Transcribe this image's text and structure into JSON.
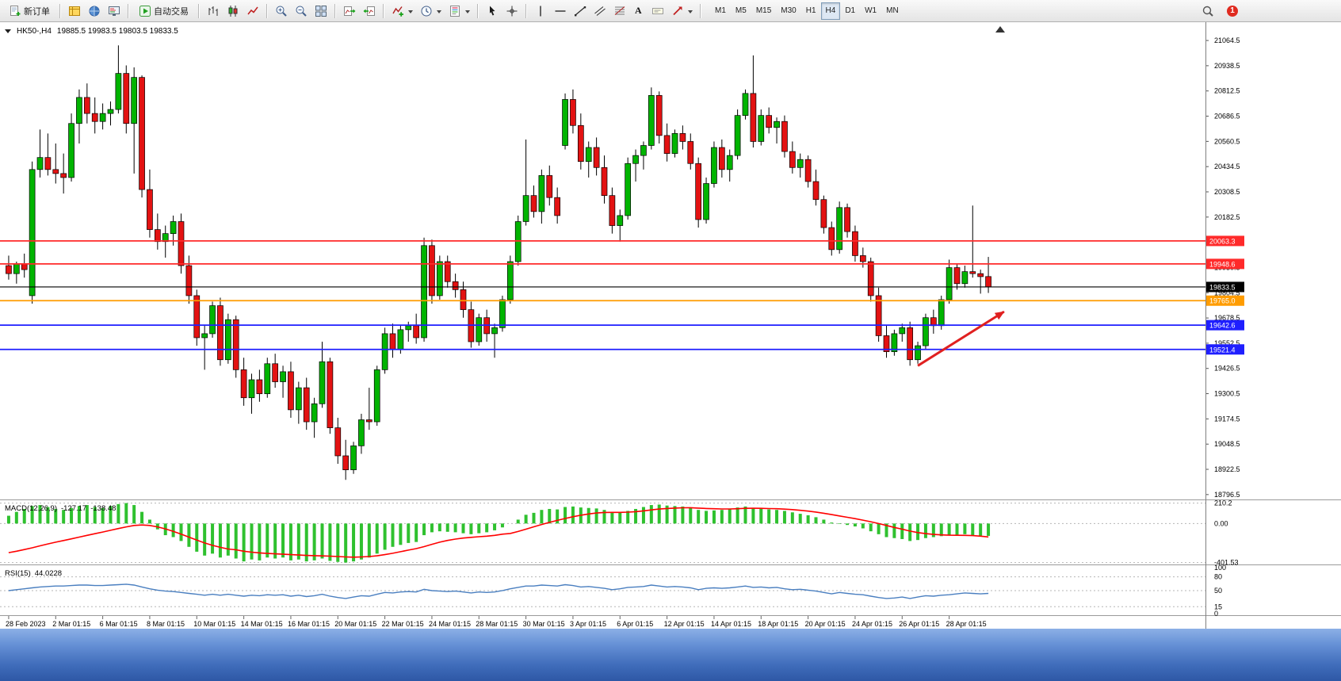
{
  "toolbar": {
    "new_order_label": "新订单",
    "auto_trading_label": "自动交易",
    "text_tool_label": "A",
    "timeframes": [
      "M1",
      "M5",
      "M15",
      "M30",
      "H1",
      "H4",
      "D1",
      "W1",
      "MN"
    ],
    "active_timeframe": "H4",
    "notification_badge": "1"
  },
  "chart": {
    "symbol_label": "HK50-,H4",
    "ohlc_text": "19885.5 19983.5 19803.5 19833.5"
  },
  "chart_data": {
    "type": "candlestick",
    "symbol": "HK50-",
    "timeframe": "H4",
    "ohlc_display": {
      "open": 19885.5,
      "high": 19983.5,
      "low": 19803.5,
      "close": 19833.5
    },
    "colors": {
      "up": "#00b400",
      "down": "#e31212",
      "wick": "#000000",
      "macd_bar": "#2fc12f",
      "macd_signal": "#ff0000",
      "rsi": "#4a7fc0"
    },
    "y_axis": {
      "min": 18780,
      "max": 21140,
      "ticks": [
        21064.5,
        20938.5,
        20812.5,
        20686.5,
        20560.5,
        20434.5,
        20308.5,
        20182.5,
        20056.5,
        19930.5,
        19804.5,
        19678.5,
        19552.5,
        19426.5,
        19300.5,
        19174.5,
        19048.5,
        18922.5,
        18796.5
      ]
    },
    "h_lines": [
      {
        "price": 20063.3,
        "color": "#ff2a2a",
        "label": "20063.3"
      },
      {
        "price": 19948.6,
        "color": "#ff2a2a",
        "label": "19948.6"
      },
      {
        "price": 19765.0,
        "color": "#ff9c00",
        "label": "19765.0"
      },
      {
        "price": 19642.6,
        "color": "#1f1fff",
        "label": "19642.6"
      },
      {
        "price": 19521.4,
        "color": "#1f1fff",
        "label": "19521.4"
      }
    ],
    "bid_line": {
      "price": 19833.5,
      "color": "#000000",
      "label": "19833.5"
    },
    "annotations": {
      "arrow": {
        "type": "arrow",
        "color": "#e02020",
        "from": {
          "index": 116,
          "price": 19440
        },
        "to": {
          "index": 127,
          "price": 19710
        }
      }
    },
    "x_labels": [
      {
        "i": 0,
        "t": "28 Feb 2023"
      },
      {
        "i": 6,
        "t": "2 Mar 01:15"
      },
      {
        "i": 12,
        "t": "6 Mar 01:15"
      },
      {
        "i": 18,
        "t": "8 Mar 01:15"
      },
      {
        "i": 24,
        "t": "10 Mar 01:15"
      },
      {
        "i": 30,
        "t": "14 Mar 01:15"
      },
      {
        "i": 36,
        "t": "16 Mar 01:15"
      },
      {
        "i": 42,
        "t": "20 Mar 01:15"
      },
      {
        "i": 48,
        "t": "22 Mar 01:15"
      },
      {
        "i": 54,
        "t": "24 Mar 01:15"
      },
      {
        "i": 60,
        "t": "28 Mar 01:15"
      },
      {
        "i": 66,
        "t": "30 Mar 01:15"
      },
      {
        "i": 72,
        "t": "3 Apr 01:15"
      },
      {
        "i": 78,
        "t": "6 Apr 01:15"
      },
      {
        "i": 84,
        "t": "12 Apr 01:15"
      },
      {
        "i": 90,
        "t": "14 Apr 01:15"
      },
      {
        "i": 96,
        "t": "18 Apr 01:15"
      },
      {
        "i": 102,
        "t": "20 Apr 01:15"
      },
      {
        "i": 108,
        "t": "24 Apr 01:15"
      },
      {
        "i": 114,
        "t": "26 Apr 01:15"
      },
      {
        "i": 120,
        "t": "28 Apr 01:15"
      }
    ],
    "candles": [
      [
        19940,
        19990,
        19870,
        19900
      ],
      [
        19900,
        19960,
        19850,
        19950
      ],
      [
        19950,
        20000,
        19880,
        19920
      ],
      [
        19790,
        20460,
        19750,
        20420
      ],
      [
        20420,
        20620,
        20380,
        20480
      ],
      [
        20480,
        20600,
        20390,
        20420
      ],
      [
        20420,
        20550,
        20350,
        20400
      ],
      [
        20400,
        20500,
        20300,
        20380
      ],
      [
        20380,
        20700,
        20360,
        20650
      ],
      [
        20650,
        20820,
        20550,
        20780
      ],
      [
        20780,
        20850,
        20650,
        20700
      ],
      [
        20700,
        20780,
        20600,
        20660
      ],
      [
        20660,
        20750,
        20620,
        20700
      ],
      [
        20700,
        20760,
        20640,
        20720
      ],
      [
        20720,
        21040,
        20700,
        20900
      ],
      [
        20900,
        20940,
        20600,
        20650
      ],
      [
        20650,
        20930,
        20400,
        20880
      ],
      [
        20880,
        20890,
        20280,
        20320
      ],
      [
        20320,
        20420,
        20080,
        20120
      ],
      [
        20120,
        20200,
        20020,
        20060
      ],
      [
        20060,
        20140,
        19980,
        20100
      ],
      [
        20100,
        20190,
        20040,
        20160
      ],
      [
        20160,
        20200,
        19900,
        19940
      ],
      [
        19940,
        19990,
        19750,
        19790
      ],
      [
        19790,
        19820,
        19540,
        19580
      ],
      [
        19580,
        19640,
        19420,
        19600
      ],
      [
        19600,
        19760,
        19580,
        19740
      ],
      [
        19740,
        19780,
        19440,
        19470
      ],
      [
        19470,
        19700,
        19450,
        19670
      ],
      [
        19670,
        19690,
        19380,
        19420
      ],
      [
        19420,
        19480,
        19240,
        19280
      ],
      [
        19280,
        19400,
        19200,
        19370
      ],
      [
        19370,
        19420,
        19260,
        19300
      ],
      [
        19300,
        19480,
        19280,
        19450
      ],
      [
        19450,
        19500,
        19330,
        19360
      ],
      [
        19360,
        19440,
        19280,
        19410
      ],
      [
        19410,
        19460,
        19180,
        19220
      ],
      [
        19220,
        19360,
        19150,
        19330
      ],
      [
        19330,
        19380,
        19120,
        19160
      ],
      [
        19160,
        19280,
        19080,
        19250
      ],
      [
        19250,
        19560,
        19230,
        19460
      ],
      [
        19460,
        19480,
        19100,
        19130
      ],
      [
        19130,
        19180,
        18950,
        18990
      ],
      [
        18990,
        19070,
        18870,
        18920
      ],
      [
        18920,
        19060,
        18900,
        19040
      ],
      [
        19040,
        19200,
        19000,
        19170
      ],
      [
        19170,
        19330,
        19120,
        19160
      ],
      [
        19160,
        19440,
        19140,
        19420
      ],
      [
        19420,
        19630,
        19400,
        19600
      ],
      [
        19600,
        19650,
        19480,
        19520
      ],
      [
        19520,
        19640,
        19500,
        19620
      ],
      [
        19620,
        19660,
        19560,
        19640
      ],
      [
        19640,
        19700,
        19550,
        19580
      ],
      [
        19580,
        20080,
        19560,
        20040
      ],
      [
        20040,
        20070,
        19750,
        19790
      ],
      [
        19790,
        19990,
        19770,
        19960
      ],
      [
        19960,
        19990,
        19830,
        19860
      ],
      [
        19860,
        19900,
        19780,
        19820
      ],
      [
        19820,
        19860,
        19680,
        19720
      ],
      [
        19720,
        19760,
        19530,
        19560
      ],
      [
        19560,
        19700,
        19540,
        19680
      ],
      [
        19680,
        19720,
        19560,
        19600
      ],
      [
        19600,
        19650,
        19480,
        19630
      ],
      [
        19630,
        19790,
        19610,
        19770
      ],
      [
        19770,
        19990,
        19750,
        19960
      ],
      [
        19960,
        20190,
        19940,
        20160
      ],
      [
        20160,
        20570,
        20140,
        20290
      ],
      [
        20290,
        20340,
        20180,
        20210
      ],
      [
        20210,
        20420,
        20150,
        20390
      ],
      [
        20390,
        20440,
        20240,
        20280
      ],
      [
        20280,
        20330,
        20150,
        20190
      ],
      [
        20540,
        20800,
        20520,
        20770
      ],
      [
        20770,
        20820,
        20600,
        20640
      ],
      [
        20640,
        20700,
        20420,
        20460
      ],
      [
        20460,
        20560,
        20380,
        20530
      ],
      [
        20530,
        20580,
        20390,
        20430
      ],
      [
        20430,
        20490,
        20250,
        20290
      ],
      [
        20290,
        20330,
        20100,
        20140
      ],
      [
        20140,
        20220,
        20060,
        20190
      ],
      [
        20190,
        20480,
        20170,
        20450
      ],
      [
        20450,
        20520,
        20360,
        20490
      ],
      [
        20490,
        20560,
        20420,
        20540
      ],
      [
        20540,
        20830,
        20520,
        20790
      ],
      [
        20790,
        20810,
        20550,
        20590
      ],
      [
        20590,
        20650,
        20460,
        20500
      ],
      [
        20500,
        20620,
        20480,
        20600
      ],
      [
        20600,
        20640,
        20520,
        20560
      ],
      [
        20560,
        20600,
        20420,
        20450
      ],
      [
        20450,
        20480,
        20130,
        20170
      ],
      [
        20170,
        20380,
        20150,
        20350
      ],
      [
        20350,
        20560,
        20330,
        20530
      ],
      [
        20530,
        20570,
        20380,
        20420
      ],
      [
        20420,
        20520,
        20360,
        20490
      ],
      [
        20490,
        20720,
        20470,
        20690
      ],
      [
        20690,
        20820,
        20670,
        20800
      ],
      [
        20800,
        20990,
        20530,
        20560
      ],
      [
        20560,
        20720,
        20540,
        20690
      ],
      [
        20690,
        20730,
        20600,
        20630
      ],
      [
        20630,
        20680,
        20550,
        20660
      ],
      [
        20660,
        20690,
        20480,
        20510
      ],
      [
        20510,
        20560,
        20400,
        20430
      ],
      [
        20430,
        20500,
        20380,
        20470
      ],
      [
        20470,
        20490,
        20330,
        20360
      ],
      [
        20360,
        20420,
        20240,
        20270
      ],
      [
        20270,
        20290,
        20100,
        20130
      ],
      [
        20130,
        20160,
        19990,
        20020
      ],
      [
        20020,
        20260,
        20000,
        20230
      ],
      [
        20230,
        20250,
        20080,
        20110
      ],
      [
        20110,
        20140,
        19960,
        19990
      ],
      [
        19990,
        20030,
        19930,
        19960
      ],
      [
        19960,
        19980,
        19760,
        19790
      ],
      [
        19790,
        19830,
        19560,
        19590
      ],
      [
        19590,
        19640,
        19480,
        19510
      ],
      [
        19510,
        19620,
        19490,
        19600
      ],
      [
        19600,
        19650,
        19560,
        19630
      ],
      [
        19630,
        19660,
        19440,
        19470
      ],
      [
        19470,
        19560,
        19450,
        19540
      ],
      [
        19540,
        19700,
        19520,
        19680
      ],
      [
        19680,
        19720,
        19600,
        19640
      ],
      [
        19640,
        19790,
        19620,
        19770
      ],
      [
        19770,
        19970,
        19750,
        19930
      ],
      [
        19930,
        19950,
        19820,
        19850
      ],
      [
        19850,
        19940,
        19830,
        19910
      ],
      [
        19910,
        20240,
        19880,
        19900
      ],
      [
        19900,
        19920,
        19800,
        19885
      ],
      [
        19885.5,
        19983.5,
        19803.5,
        19833.5
      ]
    ],
    "macd": {
      "name": "MACD(12,26,9)",
      "macd_value_text": "-127.17",
      "signal_value_text": "-138.48",
      "range": [
        -405,
        215
      ],
      "axis_labels": [
        {
          "v": 210.2,
          "t": "210.2"
        },
        {
          "v": 0,
          "t": "0.00"
        },
        {
          "v": -401.53,
          "t": "-401.53"
        }
      ],
      "histogram": [
        80,
        120,
        150,
        180,
        190,
        170,
        150,
        140,
        160,
        180,
        190,
        170,
        160,
        180,
        200,
        210.2,
        190,
        120,
        40,
        -60,
        -120,
        -140,
        -180,
        -240,
        -290,
        -330,
        -310,
        -350,
        -330,
        -360,
        -390,
        -370,
        -380,
        -350,
        -360,
        -350,
        -380,
        -370,
        -390,
        -380,
        -360,
        -385,
        -395,
        -401.53,
        -390,
        -370,
        -350,
        -310,
        -270,
        -240,
        -220,
        -200,
        -190,
        -120,
        -90,
        -80,
        -85,
        -90,
        -100,
        -110,
        -100,
        -90,
        -70,
        -40,
        0,
        40,
        90,
        110,
        140,
        150,
        145,
        170,
        175,
        165,
        160,
        155,
        140,
        120,
        115,
        130,
        150,
        170,
        190,
        195,
        185,
        180,
        175,
        165,
        140,
        130,
        135,
        140,
        150,
        165,
        175,
        160,
        150,
        145,
        140,
        130,
        115,
        100,
        85,
        65,
        40,
        10,
        -5,
        -15,
        -30,
        -50,
        -80,
        -110,
        -140,
        -150,
        -160,
        -180,
        -170,
        -150,
        -140,
        -130,
        -120,
        -115,
        -110,
        -120,
        -125,
        -127.17
      ],
      "signal": [
        -300,
        -285,
        -268,
        -250,
        -230,
        -210,
        -192,
        -175,
        -158,
        -140,
        -122,
        -105,
        -88,
        -70,
        -52,
        -35,
        -20,
        -15,
        -20,
        -35,
        -55,
        -80,
        -110,
        -140,
        -170,
        -200,
        -225,
        -245,
        -262,
        -270,
        -285,
        -295,
        -302,
        -308,
        -312,
        -316,
        -320,
        -324,
        -328,
        -331,
        -333,
        -336,
        -340,
        -344,
        -346,
        -344,
        -340,
        -332,
        -320,
        -306,
        -290,
        -274,
        -258,
        -238,
        -214,
        -192,
        -174,
        -160,
        -150,
        -142,
        -136,
        -130,
        -122,
        -110,
        -102,
        -82,
        -58,
        -34,
        -10,
        12,
        32,
        52,
        70,
        85,
        98,
        108,
        114,
        115,
        115,
        117,
        122,
        130,
        140,
        149,
        155,
        159,
        162,
        163,
        159,
        155,
        152,
        150,
        150,
        152,
        156,
        157,
        156,
        154,
        152,
        148,
        143,
        136,
        128,
        118,
        106,
        92,
        78,
        64,
        50,
        35,
        18,
        0,
        -20,
        -40,
        -58,
        -78,
        -93,
        -104,
        -112,
        -117,
        -120,
        -121,
        -122,
        -124,
        -130,
        -138.48
      ]
    },
    "rsi": {
      "name": "RSI(15)",
      "value_text": "44.0228",
      "range": [
        0,
        100
      ],
      "axis_labels": [
        {
          "v": 100,
          "t": "100",
          "dash": false
        },
        {
          "v": 80,
          "t": "80",
          "dash": true
        },
        {
          "v": 50,
          "t": "50",
          "dash": true
        },
        {
          "v": 15,
          "t": "15",
          "dash": true
        },
        {
          "v": 0,
          "t": "0",
          "dash": false
        }
      ],
      "values": [
        50,
        52,
        54,
        56,
        58,
        59,
        60,
        60,
        61,
        62,
        62,
        61,
        61,
        62,
        63,
        64,
        62,
        58,
        54,
        51,
        49,
        48,
        46,
        44,
        42,
        40,
        42,
        40,
        42,
        40,
        38,
        40,
        39,
        41,
        40,
        41,
        38,
        40,
        37,
        39,
        42,
        38,
        35,
        33,
        36,
        39,
        38,
        42,
        46,
        45,
        47,
        48,
        47,
        53,
        50,
        49,
        48,
        49,
        47,
        45,
        47,
        46,
        47,
        50,
        54,
        57,
        60,
        60,
        62,
        61,
        60,
        63,
        61,
        58,
        59,
        57,
        55,
        52,
        54,
        57,
        58,
        59,
        62,
        60,
        58,
        59,
        58,
        56,
        52,
        55,
        56,
        55,
        56,
        58,
        60,
        57,
        58,
        56,
        57,
        54,
        52,
        53,
        51,
        49,
        46,
        43,
        46,
        44,
        42,
        41,
        38,
        35,
        33,
        34,
        36,
        33,
        36,
        39,
        38,
        40,
        41,
        43,
        45,
        44,
        43,
        44.02
      ]
    }
  }
}
